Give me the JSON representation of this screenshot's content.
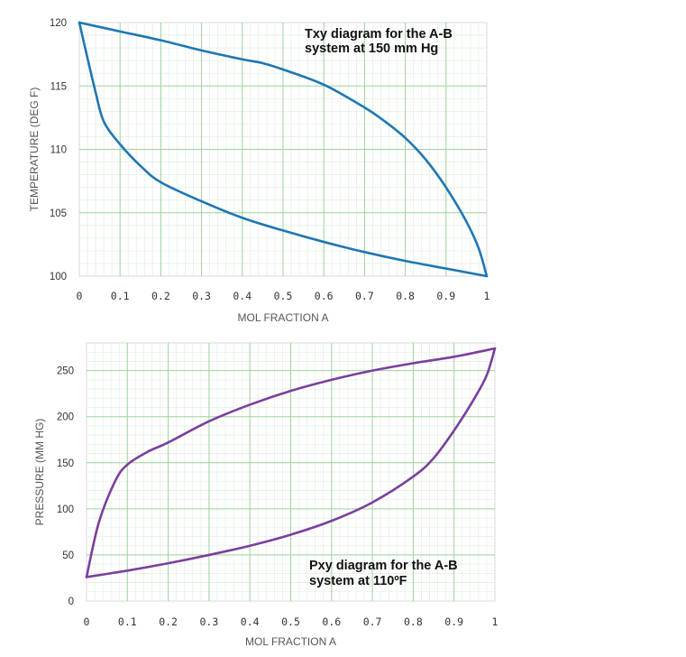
{
  "chart_data": [
    {
      "type": "line",
      "title_lines": [
        "Txy diagram for the A-B",
        "system at 150 mm Hg"
      ],
      "xlabel": "MOL FRACTION A",
      "ylabel": "TEMPERATURE (DEG F)",
      "xlim": [
        0,
        1
      ],
      "ylim": [
        100,
        120
      ],
      "x_ticks": [
        "0",
        "0.1",
        "0.2",
        "0.3",
        "0.4",
        "0.5",
        "0.6",
        "0.7",
        "0.8",
        "0.9",
        "1"
      ],
      "y_ticks": [
        "100",
        "105",
        "110",
        "115",
        "120"
      ],
      "x_tick_values": [
        0,
        0.1,
        0.2,
        0.3,
        0.4,
        0.5,
        0.6,
        0.7,
        0.8,
        0.9,
        1
      ],
      "y_tick_values": [
        100,
        105,
        110,
        115,
        120
      ],
      "grid": true,
      "title_position": "top-right",
      "color": "#1f77b4",
      "series": [
        {
          "points": [
            [
              0,
              120
            ],
            [
              0.1,
              119.3
            ],
            [
              0.2,
              118.6
            ],
            [
              0.3,
              117.8
            ],
            [
              0.4,
              117.1
            ],
            [
              0.45,
              116.8
            ],
            [
              0.5,
              116.3
            ],
            [
              0.6,
              115.1
            ],
            [
              0.7,
              113.3
            ],
            [
              0.75,
              112.2
            ],
            [
              0.8,
              110.9
            ],
            [
              0.85,
              109.2
            ],
            [
              0.9,
              107.0
            ],
            [
              0.95,
              104.3
            ],
            [
              0.98,
              102.2
            ],
            [
              1,
              100
            ]
          ]
        },
        {
          "points": [
            [
              0,
              120
            ],
            [
              0.02,
              117.2
            ],
            [
              0.04,
              114.5
            ],
            [
              0.06,
              112.2
            ],
            [
              0.1,
              110.4
            ],
            [
              0.15,
              108.7
            ],
            [
              0.2,
              107.4
            ],
            [
              0.3,
              105.9
            ],
            [
              0.4,
              104.6
            ],
            [
              0.5,
              103.6
            ],
            [
              0.6,
              102.7
            ],
            [
              0.7,
              101.9
            ],
            [
              0.8,
              101.2
            ],
            [
              0.9,
              100.6
            ],
            [
              1,
              100
            ]
          ]
        }
      ]
    },
    {
      "type": "line",
      "title_lines": [
        "Pxy diagram for the A-B",
        "system at 110ºF"
      ],
      "xlabel": "MOL FRACTION A",
      "ylabel": "PRESSURE (MM HG)",
      "xlim": [
        0,
        1
      ],
      "ylim": [
        0,
        280
      ],
      "x_ticks": [
        "0",
        "0.1",
        "0.2",
        "0.3",
        "0.4",
        "0.5",
        "0.6",
        "0.7",
        "0.8",
        "0.9",
        "1"
      ],
      "y_ticks": [
        "0",
        "50",
        "100",
        "150",
        "200",
        "250"
      ],
      "x_tick_values": [
        0,
        0.1,
        0.2,
        0.3,
        0.4,
        0.5,
        0.6,
        0.7,
        0.8,
        0.9,
        1
      ],
      "y_tick_values": [
        0,
        50,
        100,
        150,
        200,
        250
      ],
      "grid": true,
      "title_position": "bottom-right",
      "color": "#7b3f9e",
      "series": [
        {
          "points": [
            [
              0,
              26
            ],
            [
              0.03,
              85
            ],
            [
              0.07,
              130
            ],
            [
              0.1,
              148
            ],
            [
              0.15,
              162
            ],
            [
              0.2,
              172
            ],
            [
              0.3,
              195
            ],
            [
              0.4,
              213
            ],
            [
              0.5,
              228
            ],
            [
              0.6,
              240
            ],
            [
              0.7,
              250
            ],
            [
              0.8,
              258
            ],
            [
              0.9,
              265
            ],
            [
              1,
              274
            ]
          ]
        },
        {
          "points": [
            [
              0,
              26
            ],
            [
              0.1,
              33
            ],
            [
              0.2,
              41
            ],
            [
              0.3,
              50
            ],
            [
              0.4,
              60
            ],
            [
              0.5,
              72
            ],
            [
              0.6,
              87
            ],
            [
              0.7,
              107
            ],
            [
              0.8,
              135
            ],
            [
              0.85,
              155
            ],
            [
              0.9,
              185
            ],
            [
              0.95,
              220
            ],
            [
              0.98,
              245
            ],
            [
              1,
              274
            ]
          ]
        }
      ]
    }
  ]
}
